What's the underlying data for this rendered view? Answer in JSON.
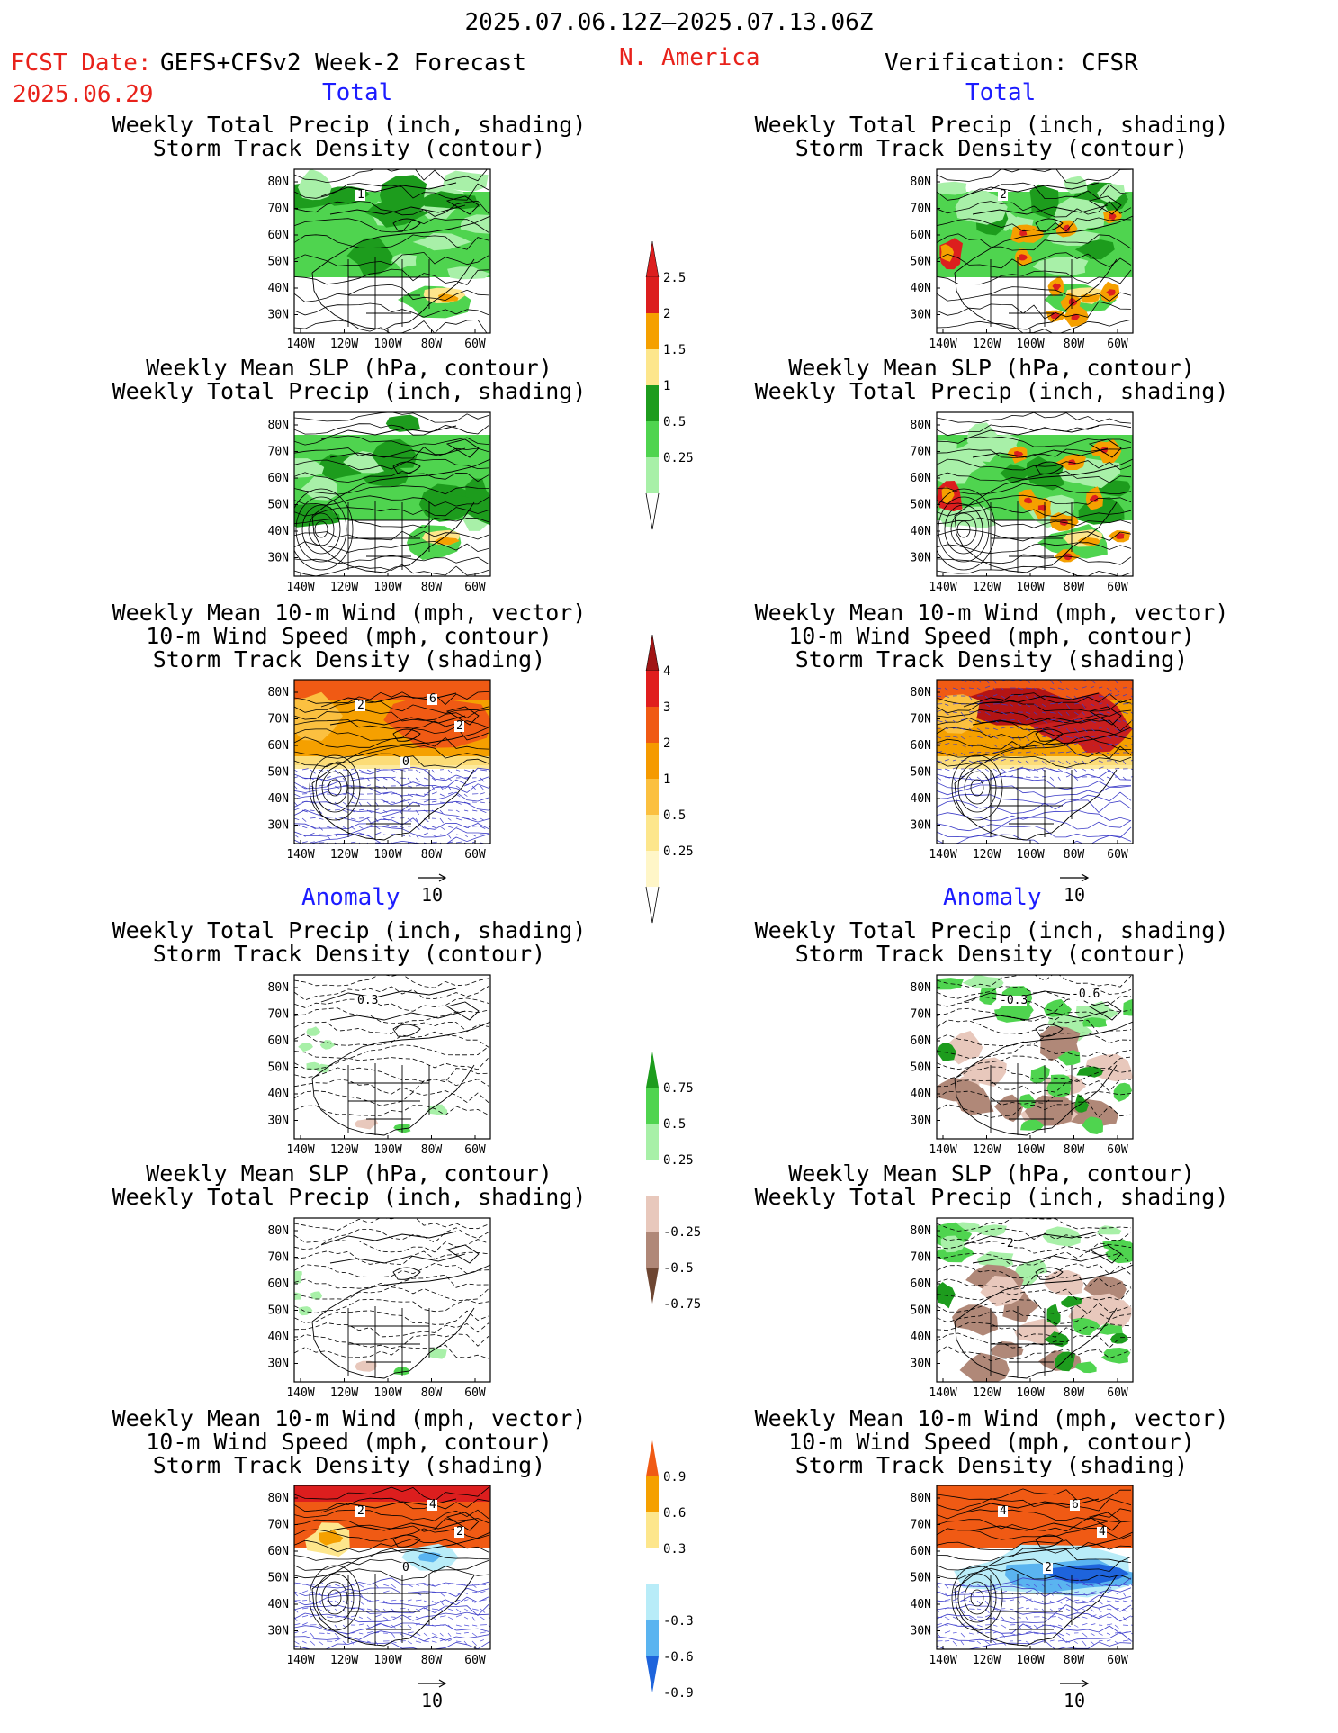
{
  "header": {
    "date_range": "2025.07.06.12Z–2025.07.13.06Z",
    "fcst_label": "FCST Date:",
    "model": "GEFS+CFSv2 Week-2 Forecast",
    "fcst_date": "2025.06.29",
    "region": "N. America",
    "verification": "Verification: CFSR"
  },
  "sections": {
    "total": "Total",
    "anomaly": "Anomaly"
  },
  "titles": {
    "precip_storm": "Weekly Total Precip (inch, shading)\nStorm Track Density (contour)",
    "slp_precip": "Weekly Mean SLP (hPa, contour)\nWeekly Total Precip (inch, shading)",
    "wind_storm": "Weekly Mean 10-m Wind (mph, vector)\n10-m Wind Speed (mph, contour)\nStorm Track Density (shading)"
  },
  "axes": {
    "lat_labels": [
      "80N",
      "70N",
      "60N",
      "50N",
      "40N",
      "30N"
    ],
    "lon_labels": [
      "140W",
      "120W",
      "100W",
      "80W",
      "60W"
    ]
  },
  "vector_ref": "10",
  "colorbars": {
    "precip_total": {
      "labels": [
        "2.5",
        "2",
        "1.5",
        "1",
        "0.5",
        "0.25"
      ],
      "colors": [
        "#dc1e1e",
        "#f5a000",
        "#fde68c",
        "#1d9c1d",
        "#4fd44f",
        "#a8f0a8"
      ]
    },
    "storm_total": {
      "labels": [
        "4",
        "3",
        "2",
        "1",
        "0.5",
        "0.25"
      ],
      "top_color": "#a01414",
      "colors": [
        "#e01e1e",
        "#f05a14",
        "#f59a00",
        "#fbc040",
        "#fde68c",
        "#fff6c8"
      ]
    },
    "precip_anom": {
      "labels": [
        "0.75",
        "0.5",
        "0.25",
        "-0.25",
        "-0.5",
        "-0.75"
      ],
      "colors": [
        "#1d9c1d",
        "#4fd44f",
        "#a8f0a8",
        "#ffffff",
        "#e8c8bc",
        "#b08878",
        "#6e4632"
      ]
    },
    "storm_anom": {
      "labels": [
        "0.9",
        "0.6",
        "0.3",
        "-0.3",
        "-0.6",
        "-0.9"
      ],
      "colors": [
        "#f05a14",
        "#f5a000",
        "#fde68c",
        "#ffffff",
        "#b8ecf8",
        "#5ab4f0",
        "#1e64dc"
      ]
    }
  },
  "panel_labels": {
    "p1": [
      "1"
    ],
    "p2": [
      "2"
    ],
    "p5": [
      "2",
      "6",
      "2",
      "0"
    ],
    "p6": [],
    "p7": [
      "0.3"
    ],
    "p8": [
      "-0.3",
      "-0.6"
    ],
    "p10": [
      "-2"
    ],
    "p11": [
      "2",
      "4",
      "2",
      "0"
    ],
    "p12": [
      "4",
      "6",
      "4",
      "2"
    ]
  },
  "colors": {
    "green_light": "#a8f0a8",
    "green": "#4fd44f",
    "green_dark": "#1d9c1d",
    "yellow": "#fde68c",
    "orange": "#f5a000",
    "red": "#dc1e1e",
    "brown_light": "#e8c8bc",
    "brown": "#b08878",
    "blue_light": "#b8ecf8",
    "blue": "#5ab4f0",
    "blue_dark": "#1e64dc"
  }
}
